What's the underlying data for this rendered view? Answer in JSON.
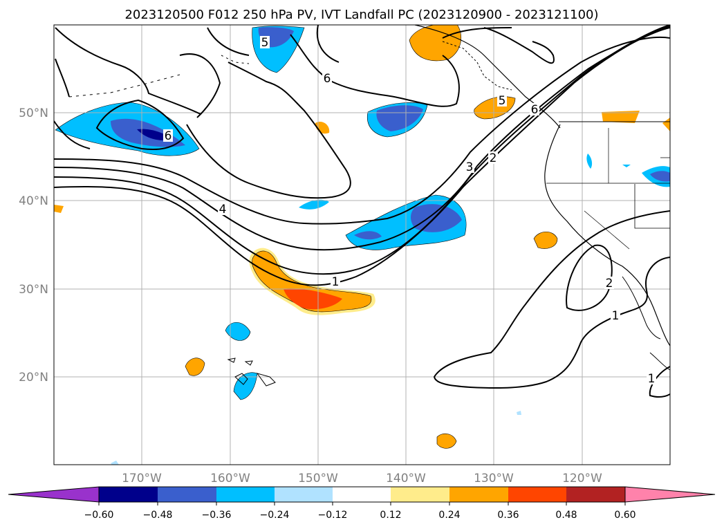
{
  "title": "2023120500 F012 250 hPa PV, IVT Landfall PC (2023120900 - 2023121100)",
  "map": {
    "lon_range": [
      -180,
      -110
    ],
    "lat_range": [
      10,
      60
    ],
    "lon_ticks": [
      -170,
      -160,
      -150,
      -140,
      -130,
      -120
    ],
    "lon_labels": [
      "170°W",
      "160°W",
      "150°W",
      "140°W",
      "130°W",
      "120°W"
    ],
    "lat_ticks": [
      20,
      30,
      40,
      50
    ],
    "lat_labels": [
      "20°N",
      "30°N",
      "40°N",
      "50°N"
    ],
    "contour_labels": [
      "6",
      "6",
      "5",
      "4",
      "3",
      "2",
      "1",
      "5",
      "6",
      "2",
      "1",
      "1"
    ]
  },
  "colorbar": {
    "levels": [
      -0.6,
      -0.48,
      -0.36,
      -0.24,
      -0.12,
      0.12,
      0.24,
      0.36,
      0.48,
      0.6
    ],
    "labels": [
      "−0.60",
      "−0.48",
      "−0.36",
      "−0.24",
      "−0.12",
      "0.12",
      "0.24",
      "0.36",
      "0.48",
      "0.60"
    ],
    "colors": [
      "#9932cc",
      "#00008b",
      "#3a5fcd",
      "#00bfff",
      "#b0e2ff",
      "#ffffff",
      "#ffec8b",
      "#ffa500",
      "#ff4500",
      "#b22222",
      "#ff82ab"
    ]
  }
}
